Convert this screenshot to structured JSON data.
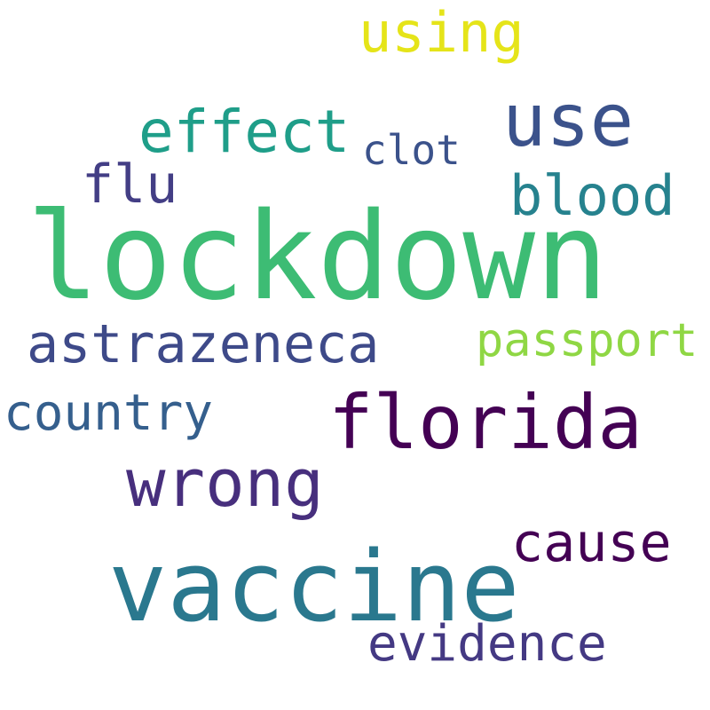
{
  "words": [
    {
      "text": "lockdown",
      "color": "#3dbc74"
    },
    {
      "text": "vaccine",
      "color": "#2a788e"
    },
    {
      "text": "florida",
      "color": "#440154"
    },
    {
      "text": "use",
      "color": "#3b528b"
    },
    {
      "text": "wrong",
      "color": "#472f7d"
    },
    {
      "text": "effect",
      "color": "#1f9e89"
    },
    {
      "text": "astrazeneca",
      "color": "#3e4a89"
    },
    {
      "text": "cause",
      "color": "#440154"
    },
    {
      "text": "blood",
      "color": "#26828e"
    },
    {
      "text": "using",
      "color": "#e5e419"
    },
    {
      "text": "evidence",
      "color": "#443983"
    },
    {
      "text": "country",
      "color": "#355f8d"
    },
    {
      "text": "passport",
      "color": "#8fd744"
    },
    {
      "text": "flu",
      "color": "#433e85"
    },
    {
      "text": "clot",
      "color": "#3b528b"
    }
  ]
}
